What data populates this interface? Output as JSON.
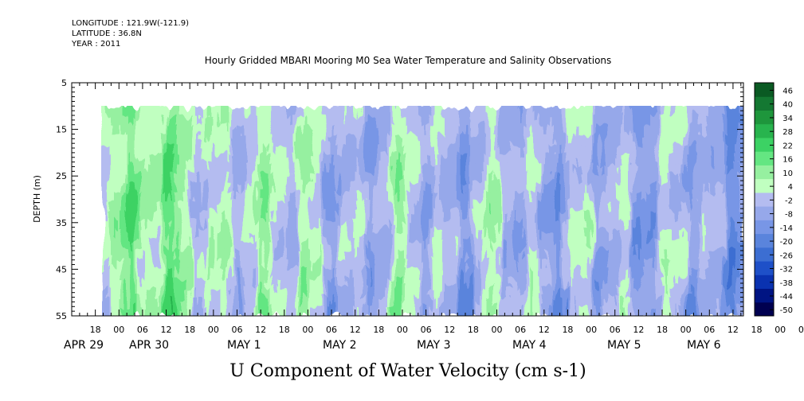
{
  "header": {
    "longitude": "LONGITUDE : 121.9W(-121.9)",
    "latitude": "LATITUDE : 36.8N",
    "year": "YEAR : 2011"
  },
  "chart_data": {
    "type": "heatmap",
    "title": "Hourly Gridded MBARI Mooring M0 Sea Water Temperature and Salinity Observations",
    "xlabel": "U Component of Water Velocity (cm s-1)",
    "ylabel": "DEPTH (m)",
    "y_reversed": true,
    "ylim": [
      5,
      55
    ],
    "y_ticks": [
      5,
      15,
      25,
      35,
      45,
      55
    ],
    "data_depth_range": [
      10,
      55
    ],
    "x_range": [
      "2011-04-29T12:00",
      "2011-05-06T16:00"
    ],
    "x_hour_ticks": [
      "18",
      "00",
      "06",
      "12",
      "18",
      "00",
      "06",
      "12",
      "18",
      "00",
      "06",
      "12",
      "18",
      "00",
      "06",
      "12",
      "18",
      "00",
      "06",
      "12",
      "18",
      "00",
      "06",
      "12",
      "18",
      "00",
      "06",
      "12",
      "18",
      "00",
      "06",
      "12"
    ],
    "x_day_labels": [
      "APR 29",
      "APR 30",
      "MAY  1",
      "MAY  2",
      "MAY  3",
      "MAY  4",
      "MAY  5",
      "MAY  6"
    ],
    "colorbar": {
      "levels": [
        -50,
        -44,
        -38,
        -32,
        -26,
        -20,
        -14,
        -8,
        -2,
        4,
        10,
        16,
        22,
        28,
        34,
        40,
        46
      ],
      "labels": [
        "46",
        "40",
        "34",
        "28",
        "22",
        "16",
        "10",
        "4",
        "-2",
        "-8",
        "-14",
        "-20",
        "-26",
        "-32",
        "-38",
        "-44",
        "-50"
      ],
      "colors": [
        "#000050",
        "#001483",
        "#0a32b0",
        "#1e50c8",
        "#3c6ed2",
        "#5a84dc",
        "#7896e6",
        "#96a8ea",
        "#b4bcf0",
        "#c0ffc0",
        "#96f0a0",
        "#64e682",
        "#3cd264",
        "#28b44e",
        "#1e963c",
        "#147832",
        "#0a5a23"
      ]
    },
    "time_profile": {
      "hours_from_start": [
        0,
        12,
        24,
        36,
        48,
        60,
        72,
        84,
        96,
        108,
        120,
        132,
        144,
        156,
        164
      ],
      "u_cm_s_approx": [
        8,
        12,
        14,
        2,
        6,
        4,
        -4,
        6,
        -6,
        4,
        -6,
        2,
        -6,
        2,
        -8
      ]
    }
  }
}
